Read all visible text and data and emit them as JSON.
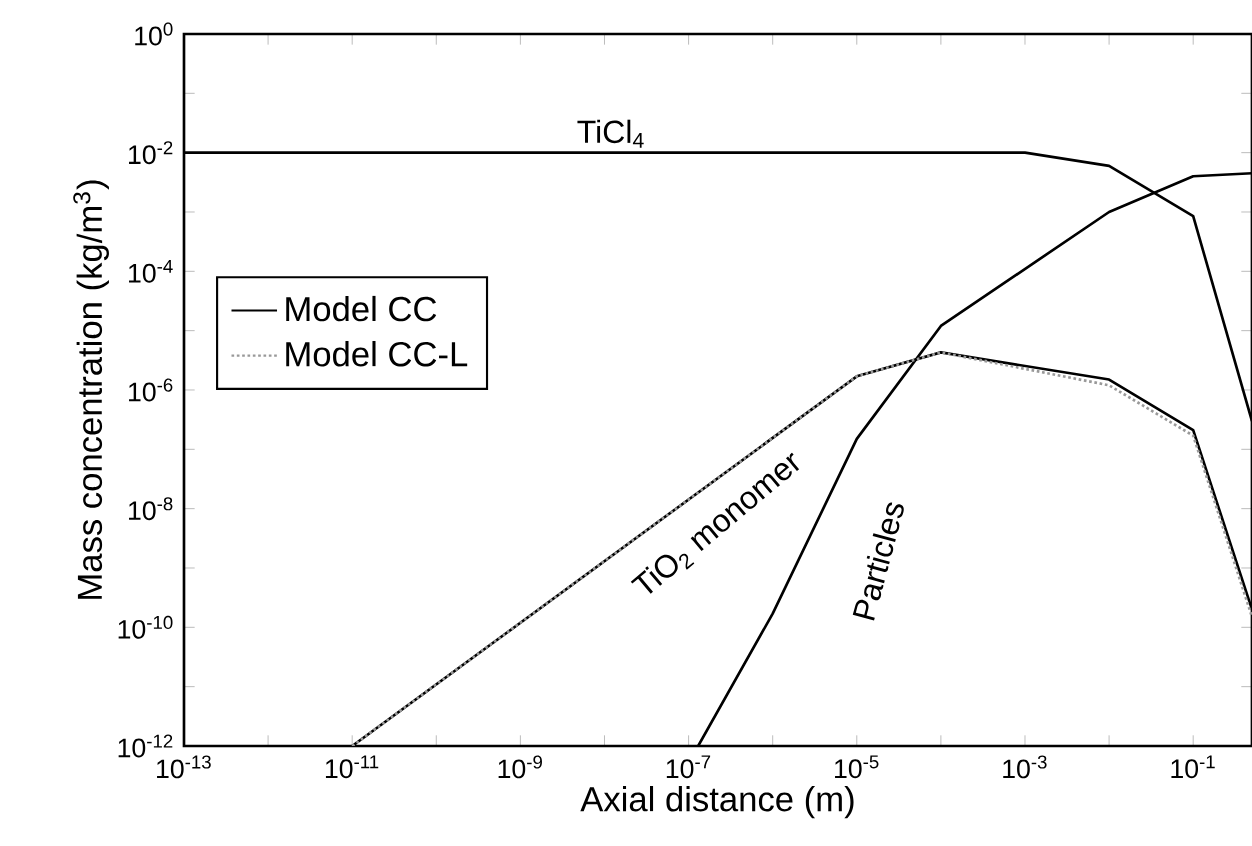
{
  "chart_data": {
    "type": "line",
    "xlabel": "Axial distance (m)",
    "ylabel": "Mass concentration (kg/m$^{3}$)",
    "log": "xy",
    "xlim": [
      1e-13,
      0.5
    ],
    "ylim": [
      1e-12,
      1
    ],
    "xticks": [
      {
        "value": 1e-13,
        "label": "10$^{-13}$"
      },
      {
        "value": 1e-12,
        "label": null
      },
      {
        "value": 1e-11,
        "label": "10$^{-11}$"
      },
      {
        "value": 1e-10,
        "label": null
      },
      {
        "value": 1e-09,
        "label": "10$^{-9}$"
      },
      {
        "value": 1e-08,
        "label": null
      },
      {
        "value": 1e-07,
        "label": "10$^{-7}$"
      },
      {
        "value": 1e-06,
        "label": null
      },
      {
        "value": 1e-05,
        "label": "10$^{-5}$"
      },
      {
        "value": 0.0001,
        "label": null
      },
      {
        "value": 0.001,
        "label": "10$^{-3}$"
      },
      {
        "value": 0.01,
        "label": null
      },
      {
        "value": 0.1,
        "label": "10$^{-1}$"
      }
    ],
    "yticks": [
      {
        "value": 1e-12,
        "label": "10$^{-12}$"
      },
      {
        "value": 1e-11,
        "label": null
      },
      {
        "value": 1e-10,
        "label": "10$^{-10}$"
      },
      {
        "value": 1e-09,
        "label": null
      },
      {
        "value": 1e-08,
        "label": "10$^{-8}$"
      },
      {
        "value": 1e-07,
        "label": null
      },
      {
        "value": 1e-06,
        "label": "10$^{-6}$"
      },
      {
        "value": 1e-05,
        "label": null
      },
      {
        "value": 0.0001,
        "label": "10$^{-4}$"
      },
      {
        "value": 0.001,
        "label": null
      },
      {
        "value": 0.01,
        "label": "10$^{-2}$"
      },
      {
        "value": 0.1,
        "label": null
      },
      {
        "value": 1,
        "label": "10$^{0}$"
      }
    ],
    "grid": false,
    "legend": "left",
    "marker": "none",
    "series": [
      {
        "name": "Model CC",
        "color": "#000000",
        "line_style": "solid",
        "x": [
          1e-13,
          0.001,
          0.01,
          0.1,
          0.5
        ],
        "values": [
          0.01,
          0.01,
          0.006,
          0.00085,
          3e-07
        ]
      },
      {
        "color": "#000000",
        "line_style": "solid",
        "x": [
          1.3e-07,
          1e-06,
          1e-05,
          0.0001,
          0.01,
          0.1,
          0.5
        ],
        "values": [
          1e-12,
          1.7e-10,
          1.5e-07,
          1.2e-05,
          0.001,
          0.004,
          0.0045
        ]
      },
      {
        "color": "#000000",
        "line_style": "solid",
        "x": [
          1e-11,
          1e-05,
          0.0001,
          0.01,
          0.1,
          0.5
        ],
        "values": [
          1e-12,
          1.7e-06,
          4.3e-06,
          1.5e-06,
          2.1e-07,
          2e-10
        ]
      },
      {
        "name": "Model CC-L",
        "color": "#999999",
        "line_style": "dotted",
        "x": [
          1e-11,
          1e-05,
          0.0001,
          0.01,
          0.1,
          0.5
        ],
        "values": [
          1e-12,
          1.7e-06,
          4.3e-06,
          1.2e-06,
          1.7e-07,
          1.5e-10
        ]
      }
    ],
    "annotations": [
      "TiCl$_{4}$",
      "TiO$_{2}$ monomer",
      "Particles"
    ]
  }
}
